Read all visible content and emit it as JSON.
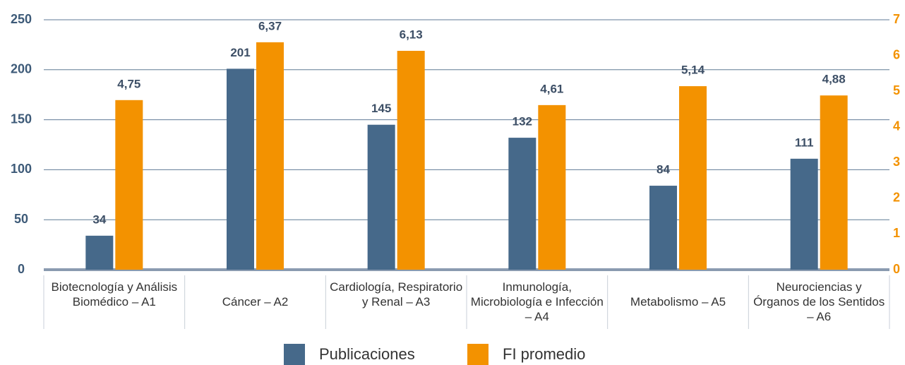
{
  "chart_data": {
    "type": "bar",
    "categories": [
      "Biotecnología y Análisis Biomédico – A1",
      "Cáncer – A2",
      "Cardiología, Respiratorio y Renal – A3",
      "Inmunología, Microbiología e Infección – A4",
      "Metabolismo – A5",
      "Neurociencias y Órganos de los Sentidos – A6"
    ],
    "series": [
      {
        "name": "Publicaciones",
        "color": "#46698a",
        "values": [
          34,
          201,
          145,
          132,
          84,
          111
        ]
      },
      {
        "name": "FI promedio",
        "color": "#f39200",
        "axis": "y2",
        "values": [
          4.75,
          6.37,
          6.13,
          4.61,
          5.14,
          4.88
        ],
        "value_labels": [
          "4,75",
          "6,37",
          "6,13",
          "4,61",
          "5,14",
          "4,88"
        ]
      }
    ],
    "ylim": [
      0,
      250
    ],
    "yticks": [
      0,
      50,
      100,
      150,
      200,
      250
    ],
    "y2lim": [
      0,
      7
    ],
    "y2ticks": [
      0,
      1,
      2,
      3,
      4,
      5,
      6,
      7
    ],
    "grid": true,
    "legend": "bottom"
  }
}
